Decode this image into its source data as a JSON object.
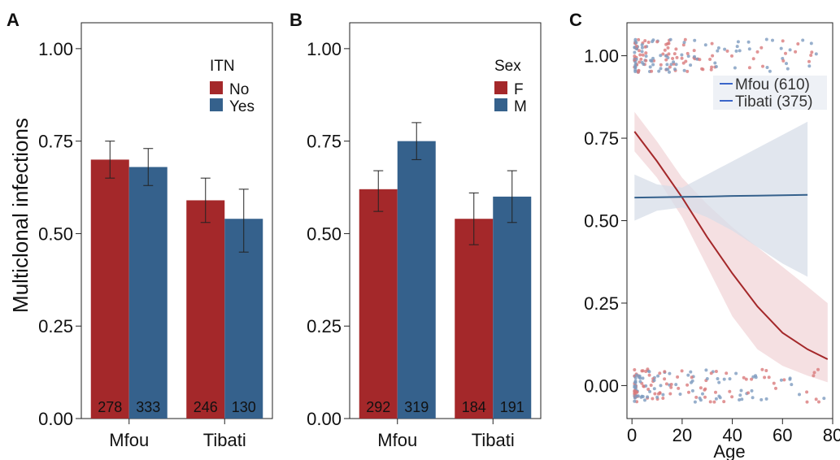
{
  "figure": {
    "ylabel": "Multiclonal infections"
  },
  "chart_data": [
    {
      "panel": "A",
      "type": "bar",
      "categories": [
        "Mfou",
        "Tibati"
      ],
      "legend_title": "ITN",
      "series": [
        {
          "name": "No",
          "color": "#a4282a",
          "values": [
            0.7,
            0.59
          ],
          "ci_low": [
            0.65,
            0.53
          ],
          "ci_high": [
            0.75,
            0.65
          ],
          "n": [
            "278",
            "246"
          ]
        },
        {
          "name": "Yes",
          "color": "#35618c",
          "values": [
            0.68,
            0.54
          ],
          "ci_low": [
            0.63,
            0.45
          ],
          "ci_high": [
            0.73,
            0.62
          ],
          "n": [
            "333",
            "130"
          ]
        }
      ],
      "ylim": [
        0,
        1.07
      ],
      "yticks": [
        "0.00",
        "0.25",
        "0.50",
        "0.75",
        "1.00"
      ],
      "ytick_values": [
        0,
        0.25,
        0.5,
        0.75,
        1.0
      ],
      "legend_placement": "top-right"
    },
    {
      "panel": "B",
      "type": "bar",
      "categories": [
        "Mfou",
        "Tibati"
      ],
      "legend_title": "Sex",
      "series": [
        {
          "name": "F",
          "color": "#a4282a",
          "values": [
            0.62,
            0.54
          ],
          "ci_low": [
            0.56,
            0.47
          ],
          "ci_high": [
            0.67,
            0.61
          ],
          "n": [
            "292",
            "184"
          ]
        },
        {
          "name": "M",
          "color": "#35618c",
          "values": [
            0.75,
            0.6
          ],
          "ci_low": [
            0.7,
            0.53
          ],
          "ci_high": [
            0.8,
            0.67
          ],
          "n": [
            "319",
            "191"
          ]
        }
      ],
      "ylim": [
        0,
        1.07
      ],
      "yticks": [
        "0.00",
        "0.25",
        "0.50",
        "0.75",
        "1.00"
      ],
      "ytick_values": [
        0,
        0.25,
        0.5,
        0.75,
        1.0
      ],
      "legend_placement": "top-right"
    },
    {
      "panel": "C",
      "type": "line",
      "xlabel": "Age",
      "xlim": [
        -2,
        80
      ],
      "ylim": [
        -0.1,
        1.1
      ],
      "xticks": [
        "0",
        "20",
        "40",
        "60",
        "80"
      ],
      "xtick_values": [
        0,
        20,
        40,
        60,
        80
      ],
      "yticks": [
        "0.00",
        "0.25",
        "0.50",
        "0.75",
        "1.00"
      ],
      "ytick_values": [
        0,
        0.25,
        0.5,
        0.75,
        1.0
      ],
      "legend_placement": "top-right",
      "series": [
        {
          "name": "Mfou (610)",
          "color": "#a4282a",
          "band_color": "#f1d6d8",
          "x": [
            1,
            10,
            20,
            30,
            40,
            50,
            60,
            70,
            78
          ],
          "y": [
            0.77,
            0.68,
            0.57,
            0.45,
            0.34,
            0.24,
            0.16,
            0.11,
            0.08
          ],
          "lower": [
            0.71,
            0.63,
            0.51,
            0.36,
            0.21,
            0.11,
            0.06,
            0.03,
            0.01
          ],
          "upper": [
            0.83,
            0.74,
            0.63,
            0.55,
            0.48,
            0.42,
            0.36,
            0.3,
            0.25
          ]
        },
        {
          "name": "Tibati (375)",
          "color": "#35618c",
          "band_color": "#d7dde8",
          "x": [
            1,
            10,
            20,
            30,
            40,
            50,
            60,
            70
          ],
          "y": [
            0.57,
            0.571,
            0.572,
            0.573,
            0.575,
            0.576,
            0.577,
            0.578
          ],
          "lower": [
            0.5,
            0.53,
            0.54,
            0.51,
            0.47,
            0.42,
            0.37,
            0.33
          ],
          "upper": [
            0.64,
            0.61,
            0.6,
            0.64,
            0.68,
            0.72,
            0.76,
            0.8
          ]
        }
      ],
      "jitter": {
        "outcomes": [
          1,
          0
        ],
        "age_range": [
          1,
          78
        ],
        "jitter_height": 0.05,
        "colors": [
          "#d97a7c",
          "#7d9bbf"
        ]
      }
    }
  ]
}
